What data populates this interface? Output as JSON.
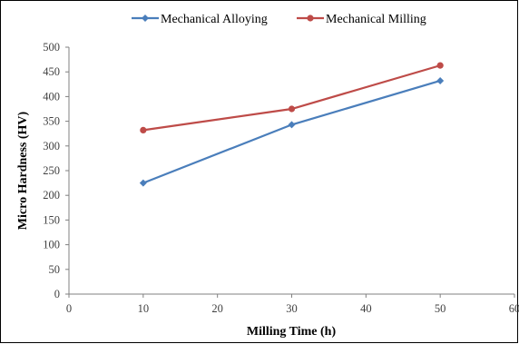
{
  "chart_data": {
    "type": "line",
    "title": "",
    "xlabel": "Milling Time (h)",
    "ylabel": "Micro Hardness (HV)",
    "xlim": [
      0,
      60
    ],
    "ylim": [
      0,
      500
    ],
    "x_ticks": [
      "0",
      "10",
      "20",
      "30",
      "40",
      "50",
      "60"
    ],
    "y_ticks": [
      "0",
      "50",
      "100",
      "150",
      "200",
      "250",
      "300",
      "350",
      "400",
      "450",
      "500"
    ],
    "grid": false,
    "legend_position": "top",
    "series": [
      {
        "name": "Mechanical Alloying",
        "color": "#4a7ebb",
        "marker": "diamond",
        "x": [
          10,
          30,
          50
        ],
        "y": [
          225,
          343,
          432
        ]
      },
      {
        "name": "Mechanical Milling",
        "color": "#be4b48",
        "marker": "circle",
        "x": [
          10,
          30,
          50
        ],
        "y": [
          332,
          375,
          463
        ]
      }
    ]
  }
}
